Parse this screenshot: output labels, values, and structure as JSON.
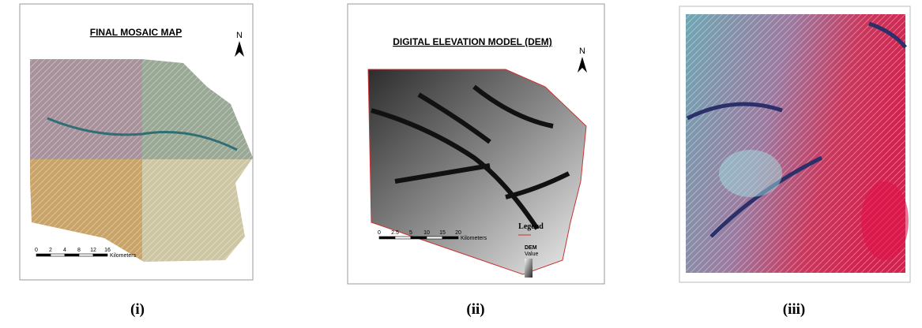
{
  "panels": [
    {
      "title": "FINAL MOSAIC MAP",
      "north": "N",
      "scale_labels": [
        "0",
        "2",
        "4",
        "8",
        "12",
        "16"
      ],
      "scale_unit": "Kilometers",
      "caption": "(i)"
    },
    {
      "title": "DIGITAL ELEVATION MODEL (DEM)",
      "north": "N",
      "scale_labels": [
        "0",
        "2.5",
        "5",
        "10",
        "15",
        "20"
      ],
      "scale_unit": "Kilometers",
      "legend_title": "Legend",
      "legend_layer": "DEM",
      "legend_value": "Value",
      "caption": "(ii)"
    },
    {
      "caption": "(iii)"
    }
  ]
}
